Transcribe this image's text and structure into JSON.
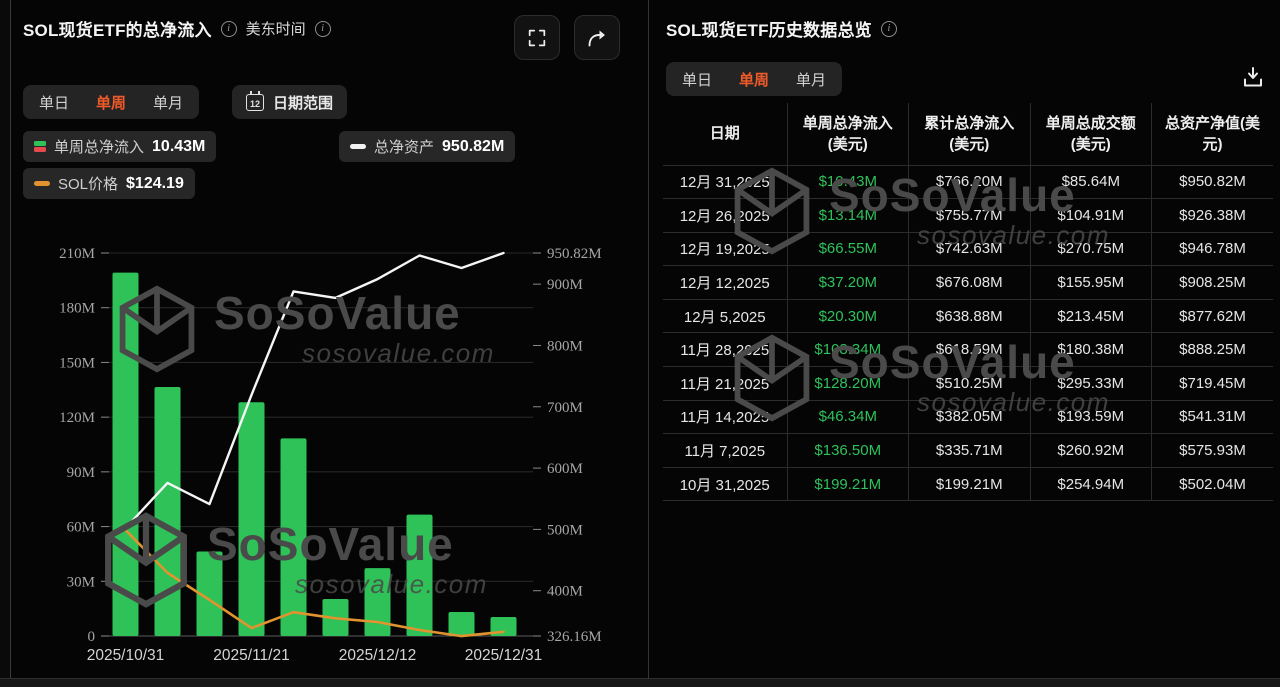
{
  "left_panel": {
    "title": "SOL现货ETF的总净流入",
    "timezone_label": "美东时间",
    "tabs": [
      {
        "label": "单日",
        "selected": false
      },
      {
        "label": "单周",
        "selected": true
      },
      {
        "label": "单月",
        "selected": false
      }
    ],
    "date_range_button": "日期范围",
    "calendar_icon_text": "12",
    "legend": [
      {
        "label": "单周总净流入",
        "value": "10.43M",
        "icon": "green-red-bar-icon"
      },
      {
        "label": "总净资产",
        "value": "950.82M",
        "icon": "white-dash-icon"
      },
      {
        "label": "SOL价格",
        "value": "$124.19",
        "icon": "orange-dash-icon"
      }
    ]
  },
  "right_panel": {
    "title": "SOL现货ETF历史数据总览",
    "tabs": [
      {
        "label": "单日",
        "selected": false
      },
      {
        "label": "单周",
        "selected": true
      },
      {
        "label": "单月",
        "selected": false
      }
    ],
    "table": {
      "headers": [
        [
          "日期"
        ],
        [
          "单周总净流入",
          "(美元)"
        ],
        [
          "累计总净流入",
          "(美元)"
        ],
        [
          "单周总成交额",
          "(美元)"
        ],
        [
          "总资产净值(美",
          "元)"
        ]
      ],
      "rows": [
        [
          "12月 31,2025",
          "$10.43M",
          "$766.20M",
          "$85.64M",
          "$950.82M"
        ],
        [
          "12月 26,2025",
          "$13.14M",
          "$755.77M",
          "$104.91M",
          "$926.38M"
        ],
        [
          "12月 19,2025",
          "$66.55M",
          "$742.63M",
          "$270.75M",
          "$946.78M"
        ],
        [
          "12月 12,2025",
          "$37.20M",
          "$676.08M",
          "$155.95M",
          "$908.25M"
        ],
        [
          "12月 5,2025",
          "$20.30M",
          "$638.88M",
          "$213.45M",
          "$877.62M"
        ],
        [
          "11月 28,2025",
          "$108.34M",
          "$618.59M",
          "$180.38M",
          "$888.25M"
        ],
        [
          "11月 21,2025",
          "$128.20M",
          "$510.25M",
          "$295.33M",
          "$719.45M"
        ],
        [
          "11月 14,2025",
          "$46.34M",
          "$382.05M",
          "$193.59M",
          "$541.31M"
        ],
        [
          "11月 7,2025",
          "$136.50M",
          "$335.71M",
          "$260.92M",
          "$575.93M"
        ],
        [
          "10月 31,2025",
          "$199.21M",
          "$199.21M",
          "$254.94M",
          "$502.04M"
        ]
      ]
    }
  },
  "chart_data": {
    "type": "bar",
    "x_dates": [
      "2025/10/31",
      "2025/11/07",
      "2025/11/14",
      "2025/11/21",
      "2025/11/28",
      "2025/12/05",
      "2025/12/12",
      "2025/12/19",
      "2025/12/26",
      "2025/12/31"
    ],
    "x_tick_labels": [
      "2025/10/31",
      "2025/11/21",
      "2025/12/12",
      "2025/12/31"
    ],
    "x_tick_positions": [
      0,
      3,
      6,
      9
    ],
    "bars": {
      "name": "单周总净流入",
      "color": "#2fc258",
      "values": [
        199.21,
        136.5,
        46.34,
        128.2,
        108.34,
        20.3,
        37.2,
        66.55,
        13.14,
        10.43
      ]
    },
    "left_axis": {
      "unit": "M",
      "min": 0,
      "max": 210,
      "ticks": [
        {
          "label": "0",
          "value": 0
        },
        {
          "label": "30M",
          "value": 30
        },
        {
          "label": "60M",
          "value": 60
        },
        {
          "label": "90M",
          "value": 90
        },
        {
          "label": "120M",
          "value": 120
        },
        {
          "label": "150M",
          "value": 150
        },
        {
          "label": "180M",
          "value": 180
        },
        {
          "label": "210M",
          "value": 210
        }
      ]
    },
    "right_axis": {
      "unit": "M",
      "min": 326.16,
      "max": 950.82,
      "ticks": [
        {
          "label": "950.82M",
          "value": 950.82
        },
        {
          "label": "900M",
          "value": 900
        },
        {
          "label": "800M",
          "value": 800
        },
        {
          "label": "700M",
          "value": 700
        },
        {
          "label": "600M",
          "value": 600
        },
        {
          "label": "500M",
          "value": 500
        },
        {
          "label": "400M",
          "value": 400
        },
        {
          "label": "326.16M",
          "value": 326.16
        }
      ]
    },
    "line_total_net_assets": {
      "name": "总净资产",
      "color": "#f5f5f5",
      "values": [
        502.04,
        575.93,
        541.31,
        719.45,
        888.25,
        877.62,
        908.25,
        946.78,
        926.38,
        950.82
      ]
    },
    "line_sol_price": {
      "name": "SOL价格",
      "color": "#e0932f",
      "current_value": "$124.19",
      "values_right_axis_scale": [
        499,
        429,
        385,
        339,
        365,
        355,
        349,
        336,
        326,
        333
      ]
    },
    "grid": true,
    "legend_position": "top-left"
  },
  "watermark": {
    "brand": "SoSoValue",
    "domain": "sosovalue.com"
  },
  "icons": {
    "fullscreen": "corner-brackets",
    "share": "curved-arrow-right",
    "download": "arrow-into-tray",
    "info": "circled-i",
    "calendar": "calendar-12"
  },
  "colors": {
    "positive_green": "#2fc258",
    "negative_red": "#e5484d",
    "accent_orange": "#ee5a29",
    "sol_line_orange": "#e0932f",
    "net_assets_line": "#f5f5f5",
    "panel_bg": "#050505",
    "chip_bg": "#272727"
  }
}
